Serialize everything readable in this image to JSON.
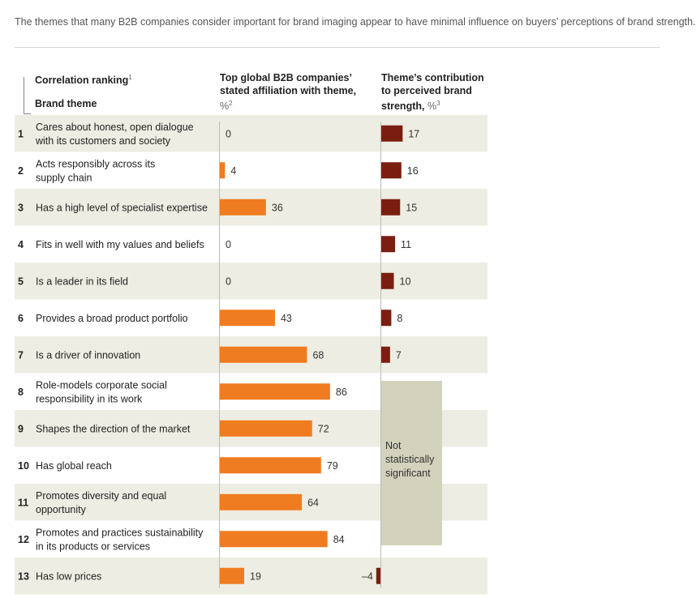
{
  "intro_text": "The themes that many B2B companies consider important for brand imaging appear to have minimal influence on buyers’ perceptions of brand strength.",
  "headers": {
    "ranking": "Correlation ranking",
    "ranking_note": "1",
    "theme": "Brand theme",
    "affiliation": "Top global B2B companies’ stated affiliation with theme,",
    "affiliation_unit": "%",
    "affiliation_note": "2",
    "contribution": "Theme’s contribution to perceived brand strength,",
    "contribution_unit": "%",
    "contribution_note": "3"
  },
  "not_significant_label": "Not statistically significant",
  "colors": {
    "affiliation_bar": "#f07c21",
    "contribution_bar": "#7a1e12",
    "stripe": "#eeede3",
    "not_significant": "#d3d2bd"
  },
  "chart_data": {
    "type": "bar",
    "orientation": "horizontal",
    "categories": [
      {
        "rank": "1",
        "theme": [
          "Cares about honest, open dialogue",
          "with its customers and society"
        ]
      },
      {
        "rank": "2",
        "theme": [
          "Acts responsibly across its",
          "supply chain"
        ]
      },
      {
        "rank": "3",
        "theme": [
          "Has a high level of specialist expertise"
        ]
      },
      {
        "rank": "4",
        "theme": [
          "Fits in well with my values and beliefs"
        ]
      },
      {
        "rank": "5",
        "theme": [
          "Is a leader in its field"
        ]
      },
      {
        "rank": "6",
        "theme": [
          "Provides a broad product portfolio"
        ]
      },
      {
        "rank": "7",
        "theme": [
          "Is a driver of innovation"
        ]
      },
      {
        "rank": "8",
        "theme": [
          "Role-models corporate social",
          "responsibility in its work"
        ]
      },
      {
        "rank": "9",
        "theme": [
          "Shapes the direction of the market"
        ]
      },
      {
        "rank": "10",
        "theme": [
          "Has global reach"
        ]
      },
      {
        "rank": "11",
        "theme": [
          "Promotes diversity and equal",
          "opportunity"
        ]
      },
      {
        "rank": "12",
        "theme": [
          "Promotes and practices sustainability",
          "in its products or services"
        ]
      },
      {
        "rank": "13",
        "theme": [
          "Has low prices"
        ]
      }
    ],
    "series": [
      {
        "name": "Top global B2B companies’ stated affiliation with theme, %",
        "values": [
          0,
          4,
          36,
          0,
          0,
          43,
          68,
          86,
          72,
          79,
          64,
          84,
          19
        ],
        "labels": [
          "0",
          "4",
          "36",
          "0",
          "0",
          "43",
          "68",
          "86",
          "72",
          "79",
          "64",
          "84",
          "19"
        ]
      },
      {
        "name": "Theme’s contribution to perceived brand strength, %",
        "values": [
          17,
          16,
          15,
          11,
          10,
          8,
          7,
          null,
          null,
          null,
          null,
          null,
          -4
        ],
        "labels": [
          "17",
          "16",
          "15",
          "11",
          "10",
          "8",
          "7",
          null,
          null,
          null,
          null,
          null,
          "–4"
        ]
      }
    ],
    "xlim_affiliation": [
      0,
      100
    ],
    "xlim_contribution": [
      -5,
      20
    ]
  }
}
